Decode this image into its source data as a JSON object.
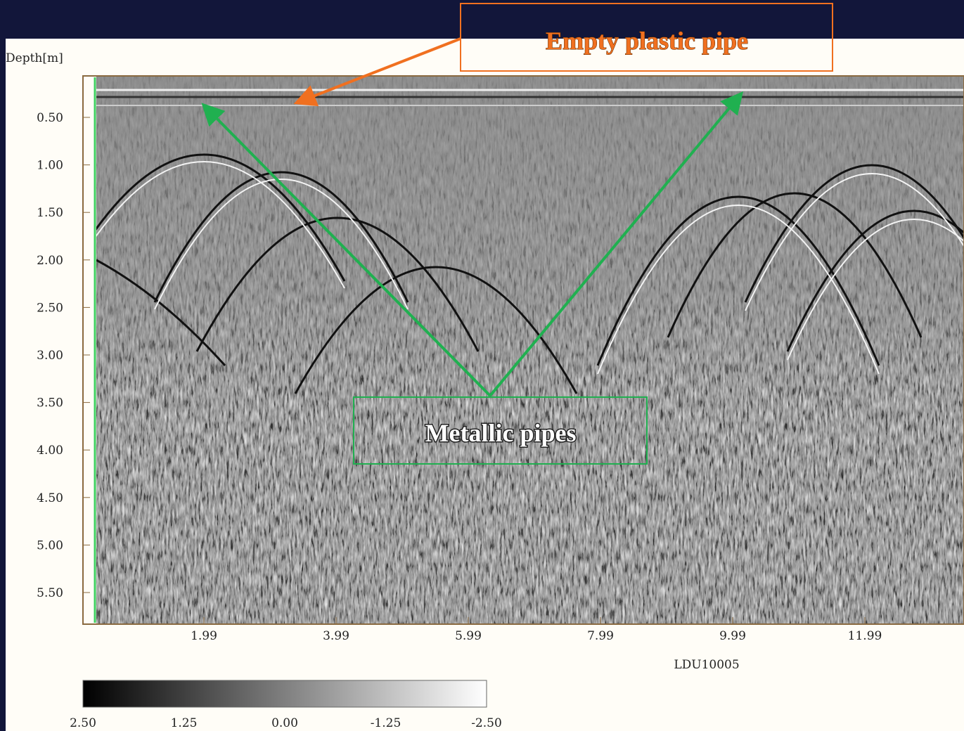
{
  "y_axis": {
    "title": "Depth[m]",
    "ticks": [
      "0.50",
      "1.00",
      "1.50",
      "2.00",
      "2.50",
      "3.00",
      "3.50",
      "4.00",
      "4.50",
      "5.00",
      "5.50"
    ]
  },
  "x_axis": {
    "ticks": [
      "1.99",
      "3.99",
      "5.99",
      "7.99",
      "9.99",
      "11.99"
    ],
    "label": "LDU10005"
  },
  "colorbar": {
    "ticks": [
      "2.50",
      "1.25",
      "0.00",
      "-1.25",
      "-2.50"
    ]
  },
  "annotations": {
    "plastic": "Empty plastic pipe",
    "metallic": "Metallic pipes"
  }
}
